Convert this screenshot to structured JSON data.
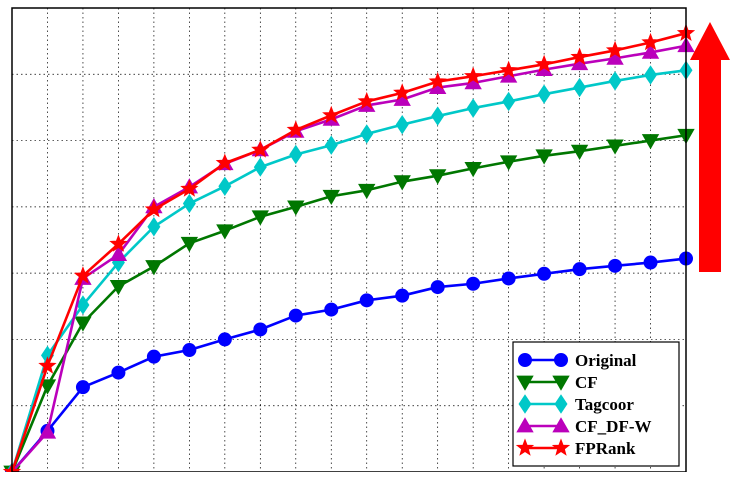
{
  "chart_data": {
    "type": "line",
    "title": "",
    "xlabel": "",
    "ylabel": "",
    "x": [
      1,
      2,
      3,
      4,
      5,
      6,
      7,
      8,
      9,
      10,
      11,
      12,
      13,
      14,
      15,
      16,
      17,
      18,
      19,
      20
    ],
    "xlim": [
      1,
      20
    ],
    "ylim": [
      0,
      7
    ],
    "grid": true,
    "legend_position": "bottom-right",
    "series": [
      {
        "name": "Original",
        "color": "#0000ff",
        "marker": "circle",
        "values": [
          0,
          0.62,
          1.28,
          1.5,
          1.74,
          1.84,
          2.0,
          2.15,
          2.36,
          2.45,
          2.59,
          2.66,
          2.79,
          2.84,
          2.92,
          2.99,
          3.06,
          3.11,
          3.16,
          3.22
        ]
      },
      {
        "name": "CF",
        "color": "#007700",
        "marker": "triangle-down",
        "values": [
          0,
          1.3,
          2.25,
          2.8,
          3.1,
          3.45,
          3.64,
          3.85,
          4.0,
          4.16,
          4.25,
          4.38,
          4.47,
          4.58,
          4.68,
          4.77,
          4.84,
          4.92,
          5.0,
          5.08
        ]
      },
      {
        "name": "Tagcoor",
        "color": "#00c8c8",
        "marker": "diamond",
        "values": [
          0,
          1.76,
          2.52,
          3.16,
          3.7,
          4.05,
          4.31,
          4.6,
          4.79,
          4.93,
          5.1,
          5.24,
          5.37,
          5.49,
          5.59,
          5.7,
          5.8,
          5.9,
          5.99,
          6.06
        ]
      },
      {
        "name": "CF_DF-W",
        "color": "#bb00bb",
        "marker": "triangle-up",
        "values": [
          0,
          0.6,
          2.92,
          3.28,
          4.0,
          4.3,
          4.65,
          4.86,
          5.14,
          5.32,
          5.53,
          5.62,
          5.8,
          5.87,
          5.97,
          6.07,
          6.16,
          6.24,
          6.33,
          6.43
        ]
      },
      {
        "name": "FPRank",
        "color": "#ff0000",
        "marker": "star",
        "values": [
          0,
          1.6,
          2.96,
          3.44,
          3.96,
          4.27,
          4.66,
          4.86,
          5.16,
          5.38,
          5.59,
          5.72,
          5.89,
          5.97,
          6.06,
          6.15,
          6.26,
          6.36,
          6.48,
          6.62
        ]
      }
    ]
  },
  "arrow": {
    "color": "#ff0000",
    "direction": "up"
  }
}
